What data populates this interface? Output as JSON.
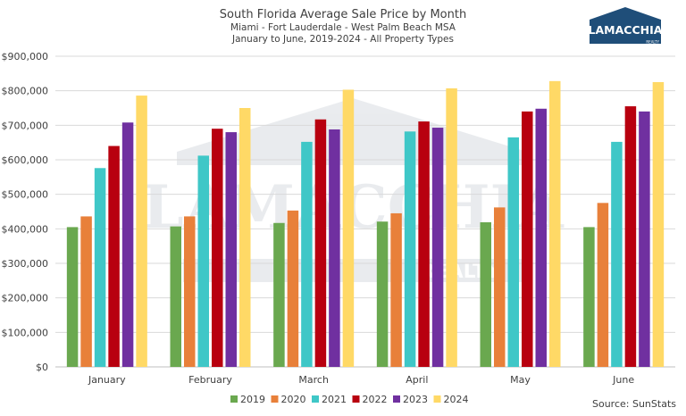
{
  "chart_data": {
    "type": "bar",
    "title": "South Florida Average Sale Price by Month",
    "subtitle_1": "Miami - Fort Lauderdale - West Palm Beach MSA",
    "subtitle_2": "January to June, 2019-2024 - All Property Types",
    "categories": [
      "January",
      "February",
      "March",
      "April",
      "May",
      "June"
    ],
    "series": [
      {
        "name": "2019",
        "color": "#6aa84f",
        "values": [
          405000,
          407000,
          417000,
          421000,
          419000,
          405000
        ]
      },
      {
        "name": "2020",
        "color": "#e8803a",
        "values": [
          436000,
          436000,
          453000,
          445000,
          462000,
          475000
        ]
      },
      {
        "name": "2021",
        "color": "#3fc7c7",
        "values": [
          576000,
          612000,
          652000,
          682000,
          665000,
          652000
        ]
      },
      {
        "name": "2022",
        "color": "#b8000f",
        "values": [
          640000,
          690000,
          717000,
          711000,
          740000,
          755000
        ]
      },
      {
        "name": "2023",
        "color": "#7030a0",
        "values": [
          708000,
          680000,
          688000,
          693000,
          748000,
          740000
        ]
      },
      {
        "name": "2024",
        "color": "#ffd966",
        "values": [
          786000,
          750000,
          803000,
          807000,
          828000,
          825000
        ]
      }
    ],
    "ylim": [
      0,
      900000
    ],
    "yticks": [
      "$0",
      "$100,000",
      "$200,000",
      "$300,000",
      "$400,000",
      "$500,000",
      "$600,000",
      "$700,000",
      "$800,000",
      "$900,000"
    ],
    "ytick_values": [
      0,
      100000,
      200000,
      300000,
      400000,
      500000,
      600000,
      700000,
      800000,
      900000
    ],
    "grid": true,
    "legend_position": "bottom",
    "source": "Source: SunStats"
  },
  "logo": {
    "name": "LAMACCHIA",
    "tagline": "REALTY",
    "watermark": "LAMACCHIA",
    "watermark_tagline": "REALTY"
  }
}
